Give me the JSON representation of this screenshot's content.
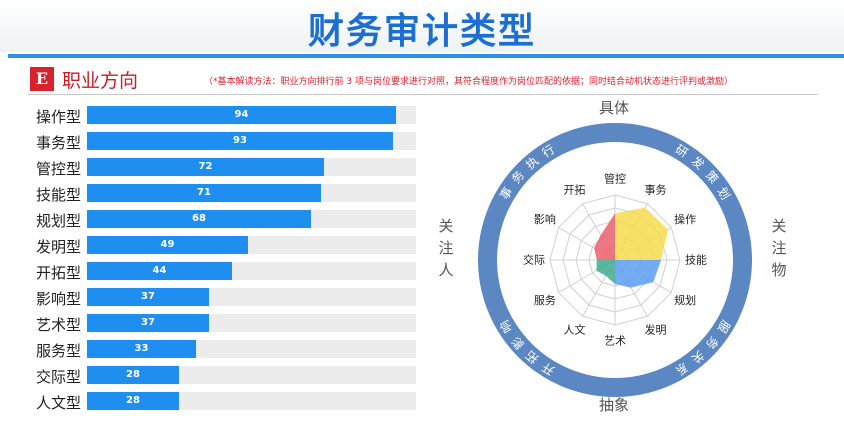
{
  "header": {
    "title": "财务审计类型"
  },
  "section": {
    "badge": "E",
    "title": "职业方向",
    "note": "（*基本解读方法：职业方向排行前 3 项与岗位要求进行对照，其符合程度作为岗位匹配的依据；同时结合动机状态进行评判或激励）"
  },
  "colors": {
    "bar": "#1e8ff0",
    "ring": "#5b87c2",
    "yellow": "#f7dc4f",
    "blue": "#5b9ef0",
    "red": "#ea5f6d",
    "teal": "#3eab8f"
  },
  "chart_data": [
    {
      "type": "bar",
      "orientation": "horizontal",
      "xlim": [
        0,
        100
      ],
      "categories": [
        "操作型",
        "事务型",
        "管控型",
        "技能型",
        "规划型",
        "发明型",
        "开拓型",
        "影响型",
        "艺术型",
        "服务型",
        "交际型",
        "人文型"
      ],
      "values": [
        94,
        93,
        72,
        71,
        68,
        49,
        44,
        37,
        37,
        33,
        28,
        28
      ]
    },
    {
      "type": "radar",
      "axes": [
        "管控",
        "事务",
        "操作",
        "技能",
        "规划",
        "发明",
        "艺术",
        "人文",
        "服务",
        "交际",
        "影响",
        "开拓"
      ],
      "values": [
        72,
        93,
        94,
        71,
        68,
        49,
        37,
        28,
        33,
        28,
        37,
        44
      ],
      "range": [
        0,
        100
      ],
      "quadrants": [
        "事务执行",
        "研发策划",
        "服务关系",
        "开拓影响"
      ],
      "side_labels": {
        "top": "具体",
        "bottom": "抽象",
        "left": "关注人",
        "right": "关注物"
      }
    }
  ]
}
